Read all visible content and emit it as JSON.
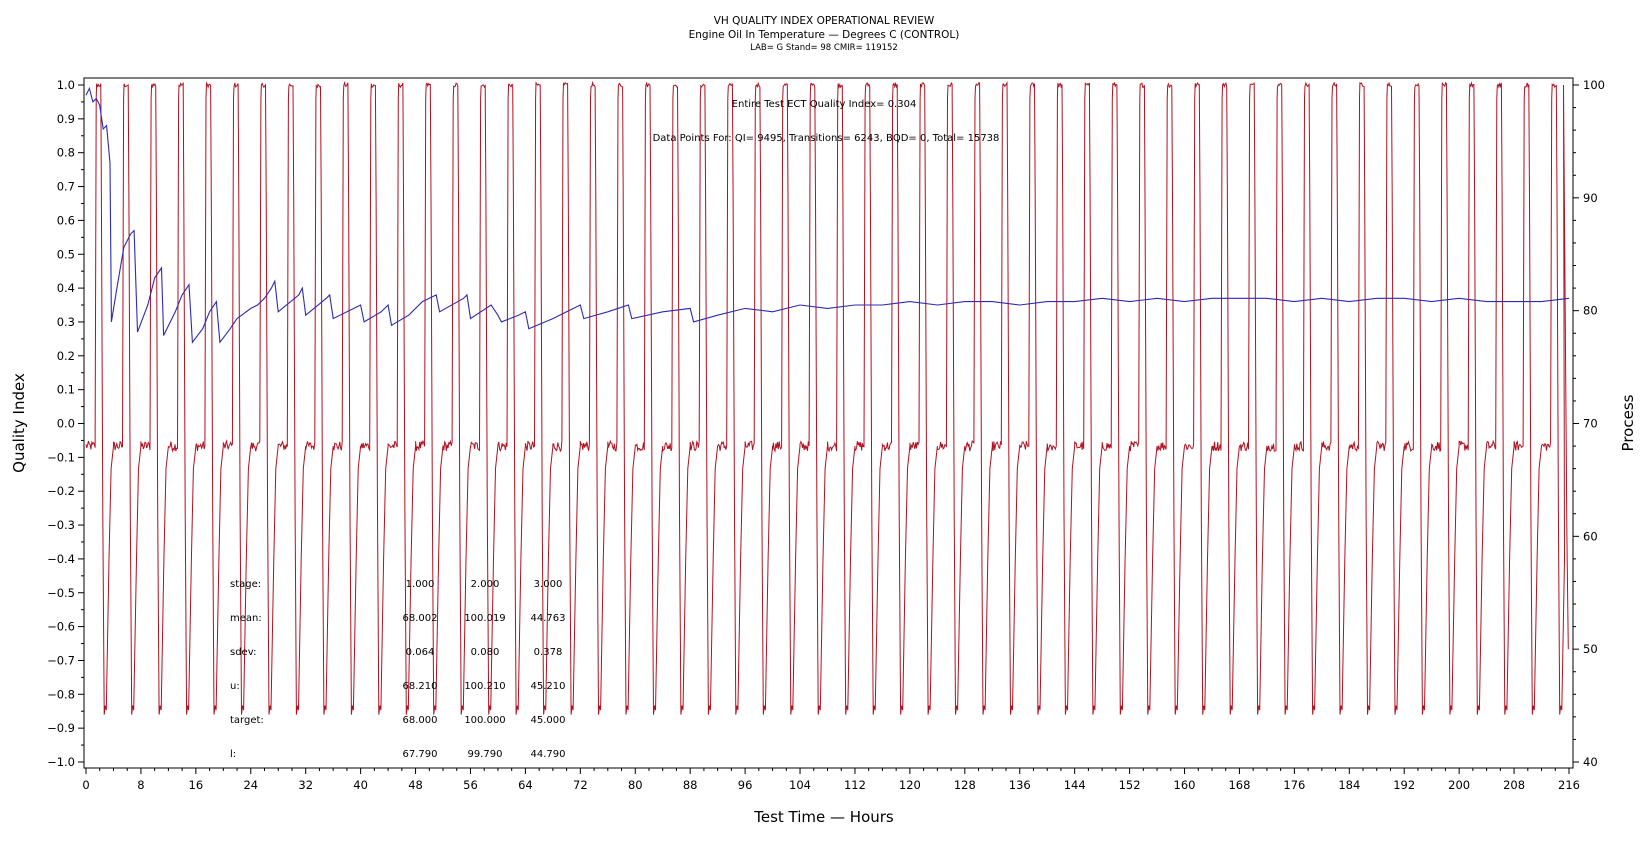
{
  "chart_data": {
    "type": "line",
    "title": "VH QUALITY INDEX OPERATIONAL REVIEW",
    "subtitle": "Engine Oil In Temperature — Degrees C (CONTROL)",
    "subtitle2": "LAB= G Stand= 98 CMIR= 119152",
    "xlabel": "Test Time — Hours",
    "ylabel_left": "Quality Index",
    "ylabel_right": "Process",
    "xlim": [
      0,
      216
    ],
    "ylim_left": [
      -1.0,
      1.0
    ],
    "ylim_right": [
      40,
      100
    ],
    "x_ticks": [
      "0",
      "8",
      "16",
      "24",
      "32",
      "40",
      "48",
      "56",
      "64",
      "72",
      "80",
      "88",
      "96",
      "104",
      "112",
      "120",
      "128",
      "136",
      "144",
      "152",
      "160",
      "168",
      "176",
      "184",
      "192",
      "200",
      "208",
      "216"
    ],
    "y_left_ticks": [
      "1.0",
      "0.9",
      "0.8",
      "0.7",
      "0.6",
      "0.5",
      "0.4",
      "0.3",
      "0.2",
      "0.1",
      "0.0",
      "−0.1",
      "−0.2",
      "−0.3",
      "−0.4",
      "−0.5",
      "−0.6",
      "−0.7",
      "−0.8",
      "−0.9",
      "−1.0"
    ],
    "y_right_ticks": [
      "100",
      "90",
      "80",
      "70",
      "60",
      "50",
      "40"
    ],
    "annotation_qi": "Entire Test ECT Quality Index=   0.304",
    "annotation_points": "Data Points For: QI=  9495, Transitions=  6243, BQD=     0, Total=  15738",
    "series": [
      {
        "color": "#2b2bb5",
        "axis": "left",
        "description": "quality index (stage-wise running)",
        "points": [
          [
            0,
            0.97
          ],
          [
            0.5,
            0.99
          ],
          [
            1,
            0.95
          ],
          [
            1.5,
            0.96
          ],
          [
            2,
            0.94
          ],
          [
            2.5,
            0.87
          ],
          [
            3,
            0.88
          ],
          [
            3.5,
            0.77
          ],
          [
            3.7,
            0.3
          ],
          [
            4.5,
            0.4
          ],
          [
            5.5,
            0.52
          ],
          [
            6.5,
            0.56
          ],
          [
            7,
            0.57
          ],
          [
            7.5,
            0.27
          ],
          [
            9,
            0.35
          ],
          [
            10,
            0.43
          ],
          [
            11,
            0.46
          ],
          [
            11.3,
            0.26
          ],
          [
            13,
            0.33
          ],
          [
            14,
            0.38
          ],
          [
            15,
            0.41
          ],
          [
            15.5,
            0.24
          ],
          [
            17,
            0.28
          ],
          [
            18,
            0.33
          ],
          [
            19,
            0.36
          ],
          [
            19.5,
            0.24
          ],
          [
            21,
            0.28
          ],
          [
            22,
            0.31
          ],
          [
            24,
            0.34
          ],
          [
            25,
            0.35
          ],
          [
            26,
            0.37
          ],
          [
            27,
            0.4
          ],
          [
            27.5,
            0.42
          ],
          [
            28,
            0.33
          ],
          [
            31,
            0.38
          ],
          [
            31.5,
            0.4
          ],
          [
            32,
            0.32
          ],
          [
            35,
            0.37
          ],
          [
            35.5,
            0.38
          ],
          [
            36,
            0.31
          ],
          [
            39,
            0.34
          ],
          [
            40,
            0.35
          ],
          [
            40.5,
            0.3
          ],
          [
            43,
            0.33
          ],
          [
            44,
            0.35
          ],
          [
            44.5,
            0.29
          ],
          [
            47,
            0.32
          ],
          [
            49,
            0.36
          ],
          [
            51,
            0.38
          ],
          [
            51.5,
            0.33
          ],
          [
            55,
            0.37
          ],
          [
            55.5,
            0.38
          ],
          [
            56,
            0.31
          ],
          [
            59,
            0.35
          ],
          [
            60,
            0.32
          ],
          [
            60.5,
            0.3
          ],
          [
            63,
            0.32
          ],
          [
            64,
            0.33
          ],
          [
            64.5,
            0.28
          ],
          [
            68,
            0.31
          ],
          [
            70,
            0.33
          ],
          [
            72,
            0.35
          ],
          [
            72.5,
            0.31
          ],
          [
            76,
            0.33
          ],
          [
            79,
            0.35
          ],
          [
            79.5,
            0.31
          ],
          [
            84,
            0.33
          ],
          [
            88,
            0.34
          ],
          [
            88.5,
            0.3
          ],
          [
            92,
            0.32
          ],
          [
            96,
            0.34
          ],
          [
            100,
            0.33
          ],
          [
            104,
            0.35
          ],
          [
            108,
            0.34
          ],
          [
            112,
            0.35
          ],
          [
            116,
            0.35
          ],
          [
            120,
            0.36
          ],
          [
            124,
            0.35
          ],
          [
            128,
            0.36
          ],
          [
            132,
            0.36
          ],
          [
            136,
            0.35
          ],
          [
            140,
            0.36
          ],
          [
            144,
            0.36
          ],
          [
            148,
            0.37
          ],
          [
            152,
            0.36
          ],
          [
            156,
            0.37
          ],
          [
            160,
            0.36
          ],
          [
            164,
            0.37
          ],
          [
            168,
            0.37
          ],
          [
            172,
            0.37
          ],
          [
            176,
            0.36
          ],
          [
            180,
            0.37
          ],
          [
            184,
            0.36
          ],
          [
            188,
            0.37
          ],
          [
            192,
            0.37
          ],
          [
            196,
            0.36
          ],
          [
            200,
            0.37
          ],
          [
            204,
            0.36
          ],
          [
            208,
            0.36
          ],
          [
            212,
            0.36
          ],
          [
            216,
            0.37
          ]
        ]
      },
      {
        "color": "#b01020",
        "axis": "right",
        "description": "process temperature cycling 68 / 100 / 45 °C",
        "stage_values": [
          68.0,
          100.0,
          45.0
        ],
        "cycle_starts": [
          0,
          4,
          8,
          12,
          16,
          20,
          24,
          28,
          32,
          36,
          40,
          44,
          48,
          52,
          56,
          60,
          64,
          68,
          72,
          76,
          80,
          84,
          88,
          92,
          96,
          100,
          104,
          108,
          112,
          116,
          120,
          124,
          128,
          132,
          136,
          140,
          144,
          148,
          152,
          156,
          160,
          164,
          168,
          172,
          176,
          180,
          184,
          188,
          192,
          196,
          200,
          204,
          208,
          212
        ]
      }
    ],
    "stats": {
      "rows": [
        {
          "label": "stage:",
          "values": [
            "1.000",
            "2.000",
            "3.000"
          ]
        },
        {
          "label": "mean:",
          "values": [
            "68.002",
            "100.019",
            "44.763"
          ]
        },
        {
          "label": "sdev:",
          "values": [
            "0.064",
            "0.080",
            "0.378"
          ]
        },
        {
          "label": "u:",
          "values": [
            "68.210",
            "100.210",
            "45.210"
          ]
        },
        {
          "label": "target:",
          "values": [
            "68.000",
            "100.000",
            "45.000"
          ]
        },
        {
          "label": "l:",
          "values": [
            "67.790",
            "99.790",
            "44.790"
          ]
        }
      ]
    },
    "grid": false,
    "legend": "none"
  }
}
